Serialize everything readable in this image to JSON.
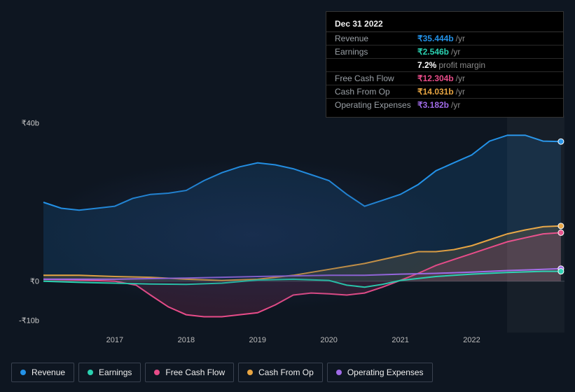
{
  "background_color": "#0e1621",
  "tooltip": {
    "date": "Dec 31 2022",
    "rows": [
      {
        "label": "Revenue",
        "value": "₹35.444b",
        "unit": "/yr",
        "color": "#2392e8"
      },
      {
        "label": "Earnings",
        "value": "₹2.546b",
        "unit": "/yr",
        "color": "#2ad1b1",
        "sub_value": "7.2%",
        "sub_label": "profit margin"
      },
      {
        "label": "Free Cash Flow",
        "value": "₹12.304b",
        "unit": "/yr",
        "color": "#e84c89"
      },
      {
        "label": "Cash From Op",
        "value": "₹14.031b",
        "unit": "/yr",
        "color": "#e8a542"
      },
      {
        "label": "Operating Expenses",
        "value": "₹3.182b",
        "unit": "/yr",
        "color": "#a06be8"
      }
    ]
  },
  "chart": {
    "ylim": [
      -13,
      42
    ],
    "y_ticks": [
      {
        "value": 40,
        "label": "₹40b"
      },
      {
        "value": 0,
        "label": "₹0"
      },
      {
        "value": -10,
        "label": "-₹10b"
      }
    ],
    "x_start": 2016.0,
    "x_end": 2023.3,
    "x_ticks": [
      2017,
      2018,
      2019,
      2020,
      2021,
      2022
    ],
    "future_from": 2022.5,
    "baseline": 0,
    "series": [
      {
        "name": "Revenue",
        "color": "#2392e8",
        "fill": true,
        "points": [
          [
            2016.0,
            20
          ],
          [
            2016.25,
            18.5
          ],
          [
            2016.5,
            18
          ],
          [
            2016.75,
            18.5
          ],
          [
            2017.0,
            19
          ],
          [
            2017.25,
            21
          ],
          [
            2017.5,
            22
          ],
          [
            2017.75,
            22.3
          ],
          [
            2018.0,
            23
          ],
          [
            2018.25,
            25.5
          ],
          [
            2018.5,
            27.5
          ],
          [
            2018.75,
            29
          ],
          [
            2019.0,
            30
          ],
          [
            2019.25,
            29.5
          ],
          [
            2019.5,
            28.5
          ],
          [
            2019.75,
            27
          ],
          [
            2020.0,
            25.5
          ],
          [
            2020.25,
            22
          ],
          [
            2020.5,
            19
          ],
          [
            2020.75,
            20.5
          ],
          [
            2021.0,
            22
          ],
          [
            2021.25,
            24.5
          ],
          [
            2021.5,
            28
          ],
          [
            2021.75,
            30
          ],
          [
            2022.0,
            32
          ],
          [
            2022.25,
            35.5
          ],
          [
            2022.5,
            37
          ],
          [
            2022.75,
            37
          ],
          [
            2023.0,
            35.5
          ],
          [
            2023.25,
            35.4
          ]
        ]
      },
      {
        "name": "Cash From Op",
        "color": "#e8a542",
        "fill": true,
        "points": [
          [
            2016.0,
            1.5
          ],
          [
            2016.5,
            1.5
          ],
          [
            2017.0,
            1.2
          ],
          [
            2017.5,
            1.0
          ],
          [
            2018.0,
            0.5
          ],
          [
            2018.5,
            0.2
          ],
          [
            2019.0,
            0.5
          ],
          [
            2019.5,
            1.5
          ],
          [
            2020.0,
            3
          ],
          [
            2020.5,
            4.5
          ],
          [
            2021.0,
            6.5
          ],
          [
            2021.25,
            7.5
          ],
          [
            2021.5,
            7.5
          ],
          [
            2021.75,
            8
          ],
          [
            2022.0,
            9
          ],
          [
            2022.25,
            10.5
          ],
          [
            2022.5,
            12
          ],
          [
            2022.75,
            13
          ],
          [
            2023.0,
            13.8
          ],
          [
            2023.25,
            14.0
          ]
        ]
      },
      {
        "name": "Free Cash Flow",
        "color": "#e84c89",
        "fill": true,
        "points": [
          [
            2016.0,
            0.5
          ],
          [
            2016.5,
            0.3
          ],
          [
            2017.0,
            0
          ],
          [
            2017.3,
            -1
          ],
          [
            2017.5,
            -3.5
          ],
          [
            2017.75,
            -6.5
          ],
          [
            2018.0,
            -8.5
          ],
          [
            2018.25,
            -9
          ],
          [
            2018.5,
            -9
          ],
          [
            2018.75,
            -8.5
          ],
          [
            2019.0,
            -8
          ],
          [
            2019.25,
            -6
          ],
          [
            2019.5,
            -3.5
          ],
          [
            2019.75,
            -3
          ],
          [
            2020.0,
            -3.2
          ],
          [
            2020.25,
            -3.5
          ],
          [
            2020.5,
            -3
          ],
          [
            2020.75,
            -1.5
          ],
          [
            2021.0,
            0.2
          ],
          [
            2021.25,
            2
          ],
          [
            2021.5,
            4
          ],
          [
            2021.75,
            5.5
          ],
          [
            2022.0,
            7
          ],
          [
            2022.25,
            8.5
          ],
          [
            2022.5,
            10
          ],
          [
            2022.75,
            11
          ],
          [
            2023.0,
            12
          ],
          [
            2023.25,
            12.3
          ]
        ]
      },
      {
        "name": "Operating Expenses",
        "color": "#a06be8",
        "fill": false,
        "points": [
          [
            2016.0,
            0.5
          ],
          [
            2017.0,
            0.5
          ],
          [
            2018.0,
            0.8
          ],
          [
            2019.0,
            1.2
          ],
          [
            2020.0,
            1.5
          ],
          [
            2020.5,
            1.5
          ],
          [
            2021.0,
            1.8
          ],
          [
            2021.5,
            2.0
          ],
          [
            2022.0,
            2.3
          ],
          [
            2022.5,
            2.7
          ],
          [
            2023.0,
            3.0
          ],
          [
            2023.25,
            3.2
          ]
        ]
      },
      {
        "name": "Earnings",
        "color": "#2ad1b1",
        "fill": false,
        "points": [
          [
            2016.0,
            0
          ],
          [
            2016.5,
            -0.3
          ],
          [
            2017.0,
            -0.5
          ],
          [
            2017.5,
            -0.7
          ],
          [
            2018.0,
            -0.8
          ],
          [
            2018.5,
            -0.5
          ],
          [
            2019.0,
            0.3
          ],
          [
            2019.5,
            0.5
          ],
          [
            2020.0,
            0.2
          ],
          [
            2020.25,
            -1.0
          ],
          [
            2020.5,
            -1.5
          ],
          [
            2020.75,
            -0.8
          ],
          [
            2021.0,
            0.2
          ],
          [
            2021.5,
            1.2
          ],
          [
            2022.0,
            1.8
          ],
          [
            2022.5,
            2.2
          ],
          [
            2023.0,
            2.5
          ],
          [
            2023.25,
            2.5
          ]
        ]
      }
    ]
  },
  "legend": [
    {
      "label": "Revenue",
      "color": "#2392e8"
    },
    {
      "label": "Earnings",
      "color": "#2ad1b1"
    },
    {
      "label": "Free Cash Flow",
      "color": "#e84c89"
    },
    {
      "label": "Cash From Op",
      "color": "#e8a542"
    },
    {
      "label": "Operating Expenses",
      "color": "#a06be8"
    }
  ]
}
